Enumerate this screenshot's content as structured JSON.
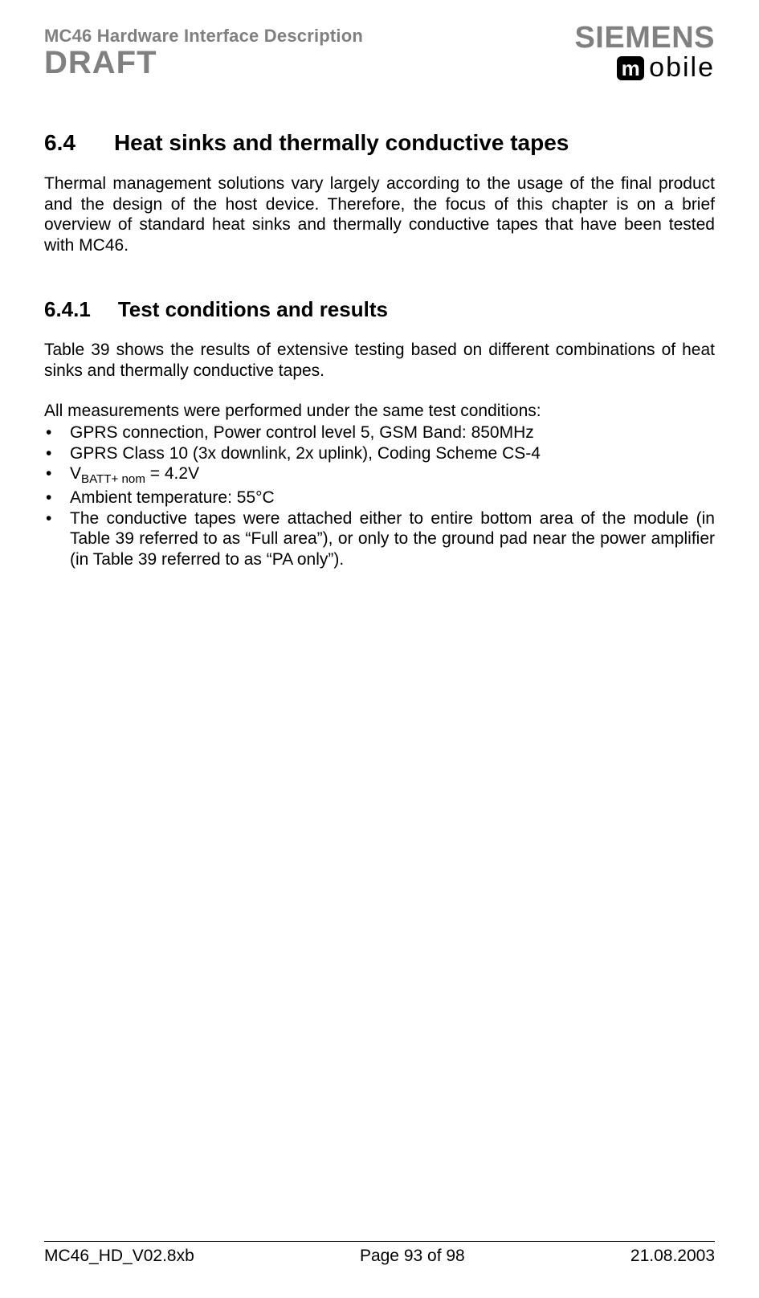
{
  "colors": {
    "text": "#000000",
    "muted": "#808080",
    "background": "#ffffff",
    "icon_bg": "#000000",
    "icon_fg": "#ffffff",
    "rule": "#000000"
  },
  "typography": {
    "body_font": "Arial",
    "body_size_pt": 16,
    "h2_size_pt": 21,
    "h3_size_pt": 20,
    "draft_size_pt": 30,
    "siemens_size_pt": 29,
    "mobile_size_pt": 26
  },
  "header": {
    "doc_title": "MC46 Hardware Interface Description",
    "draft": "DRAFT",
    "siemens": "SIEMENS",
    "m_glyph": "m",
    "mobile": "obile"
  },
  "section": {
    "h2_num": "6.4",
    "h2_text": "Heat sinks and thermally conductive tapes",
    "p1": "Thermal management solutions vary largely according to the usage of the final product and the design of the host device. Therefore, the focus of this chapter is on a brief overview of standard heat sinks and thermally conductive tapes that have been tested with MC46.",
    "h3_num": "6.4.1",
    "h3_text": "Test conditions and results",
    "p2": "Table 39 shows the results of extensive testing based on different combinations of heat sinks and thermally conductive tapes.",
    "intro": "All measurements were performed under the same test conditions:",
    "bullets": {
      "b1": "GPRS connection, Power control level 5, GSM Band: 850MHz",
      "b2": "GPRS Class 10 (3x downlink, 2x uplink), Coding Scheme CS-4",
      "b3_pre": "V",
      "b3_sub": "BATT+ nom",
      "b3_post": " = 4.2V",
      "b4": "Ambient temperature: 55°C",
      "b5": "The conductive tapes were attached either to entire bottom area of the module (in Table 39 referred to as “Full area”), or only to the ground pad near the power amplifier (in Table 39 referred to as “PA only”)."
    }
  },
  "footer": {
    "left": "MC46_HD_V02.8xb",
    "center": "Page 93 of 98",
    "right": "21.08.2003"
  }
}
